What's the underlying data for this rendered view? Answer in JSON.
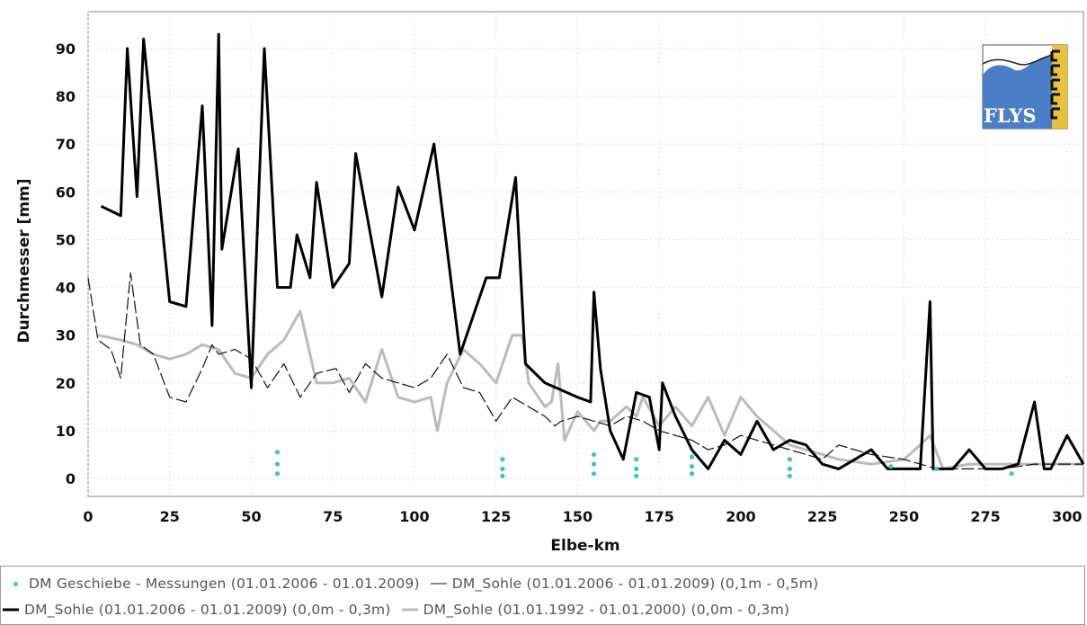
{
  "chart_data": {
    "type": "line",
    "xlabel": "Elbe-km",
    "ylabel": "Durchmesser [mm]",
    "xlim": [
      0,
      305
    ],
    "ylim": [
      -2,
      96
    ],
    "x_ticks": [
      "0",
      "25",
      "50",
      "75",
      "100",
      "125",
      "150",
      "175",
      "200",
      "225",
      "250",
      "275",
      "300"
    ],
    "y_ticks": [
      "0",
      "10",
      "20",
      "30",
      "40",
      "50",
      "60",
      "70",
      "80",
      "90"
    ],
    "grid": true,
    "legend_position": "bottom",
    "series": [
      {
        "name": "DM Geschiebe - Messungen (01.01.2006 - 01.01.2009)",
        "style": "points",
        "color": "#3cc8b4",
        "x": [
          58,
          58,
          58,
          127,
          127,
          127,
          155,
          155,
          155,
          168,
          168,
          168,
          185,
          185,
          185,
          215,
          215,
          215,
          246,
          260,
          283
        ],
        "y": [
          5.5,
          3,
          1,
          4,
          2,
          0.5,
          5,
          3,
          1,
          4,
          2,
          0.5,
          4.5,
          2.5,
          1,
          4,
          2,
          0.5,
          2.5,
          2,
          1
        ]
      },
      {
        "name": "DM_Sohle (01.01.2006 - 01.01.2009) (0,1m - 0,5m)",
        "style": "thin",
        "color": "#111111",
        "x": [
          0,
          3,
          7,
          10,
          13,
          16,
          20,
          25,
          30,
          35,
          38,
          40,
          45,
          50,
          55,
          60,
          65,
          70,
          76,
          80,
          85,
          90,
          95,
          100,
          105,
          110,
          115,
          120,
          125,
          130,
          135,
          140,
          143,
          145,
          150,
          155,
          160,
          165,
          170,
          175,
          180,
          185,
          190,
          195,
          200,
          210,
          220,
          225,
          230,
          240,
          250,
          255,
          260,
          270,
          280,
          290,
          300,
          305
        ],
        "y": [
          42,
          29,
          27,
          21,
          43,
          28,
          26,
          17,
          16,
          23,
          28,
          26,
          27,
          25,
          19,
          24,
          17,
          22,
          23,
          18,
          24,
          21,
          20,
          19,
          21,
          26,
          19,
          18,
          12,
          17,
          15,
          13,
          11,
          12,
          13,
          12,
          11,
          13,
          12,
          10,
          9,
          8,
          6,
          7,
          9,
          7,
          5,
          4,
          7,
          5,
          4,
          3,
          2,
          2,
          2,
          3,
          3,
          3
        ]
      },
      {
        "name": "DM_Sohle (01.01.2006 - 01.01.2009) (0,0m - 0,3m)",
        "style": "thick",
        "color": "#000000",
        "x": [
          4,
          10,
          12,
          15,
          17,
          25,
          30,
          35,
          38,
          40,
          41,
          46,
          50,
          54,
          58,
          62,
          64,
          68,
          70,
          75,
          80,
          82,
          90,
          95,
          100,
          106,
          114,
          122,
          126,
          131,
          134,
          140,
          150,
          154,
          155,
          157,
          160,
          164,
          168,
          172,
          175,
          176,
          180,
          185,
          190,
          195,
          200,
          205,
          210,
          215,
          220,
          225,
          230,
          240,
          245,
          250,
          255,
          258,
          259,
          260,
          265,
          270,
          275,
          280,
          285,
          290,
          293,
          295,
          300,
          305
        ],
        "y": [
          57,
          55,
          90,
          59,
          92,
          37,
          36,
          78,
          32,
          93,
          48,
          69,
          19,
          90,
          40,
          40,
          51,
          42,
          62,
          40,
          45,
          68,
          38,
          61,
          52,
          70,
          26,
          42,
          42,
          63,
          24,
          20,
          17,
          16,
          39,
          23,
          10,
          4,
          18,
          17,
          6,
          20,
          13,
          6,
          2,
          8,
          5,
          12,
          6,
          8,
          7,
          3,
          2,
          6,
          2,
          2,
          2,
          37,
          2,
          2,
          2,
          6,
          2,
          2,
          3,
          16,
          2,
          2,
          9,
          3
        ]
      },
      {
        "name": "DM_Sohle (01.01.1992 - 01.01.2000) (0,0m - 0,3m)",
        "style": "gray",
        "color": "#bbbbbb",
        "x": [
          3,
          10,
          15,
          20,
          25,
          30,
          35,
          40,
          45,
          50,
          55,
          60,
          65,
          70,
          75,
          80,
          85,
          90,
          95,
          100,
          105,
          107,
          110,
          115,
          120,
          125,
          130,
          133,
          135,
          140,
          142,
          144,
          146,
          150,
          155,
          157,
          160,
          165,
          168,
          170,
          175,
          180,
          185,
          190,
          195,
          200,
          205,
          210,
          215,
          220,
          225,
          230,
          240,
          250,
          255,
          258,
          262,
          270,
          280,
          290,
          300,
          305
        ],
        "y": [
          30,
          29,
          28,
          26,
          25,
          26,
          28,
          27,
          22,
          21,
          26,
          29,
          35,
          20,
          20,
          21,
          16,
          27,
          17,
          16,
          17,
          10,
          20,
          27,
          24,
          20,
          30,
          30,
          20,
          15,
          16,
          24,
          8,
          14,
          10,
          12,
          12,
          15,
          13,
          17,
          11,
          15,
          11,
          17,
          9,
          17,
          13,
          10,
          7,
          6,
          5,
          4,
          3,
          4,
          7,
          9,
          2,
          3,
          3,
          3,
          3,
          3
        ]
      }
    ]
  },
  "logo": {
    "text": "FLYS"
  }
}
